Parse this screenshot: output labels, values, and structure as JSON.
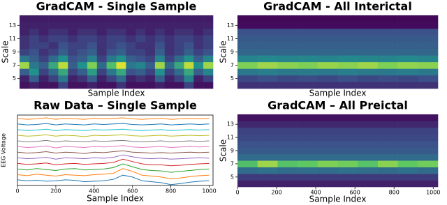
{
  "chart_data": [
    {
      "type": "heatmap",
      "title": "GradCAM - Single Sample",
      "xlabel": "Sample Index",
      "ylabel": "Scale",
      "colormap": "viridis",
      "ylim": [
        3.5,
        14.5
      ],
      "yticks": [
        5,
        7,
        9,
        11,
        13
      ],
      "y": [
        4,
        5,
        6,
        7,
        8,
        9,
        10,
        11,
        12,
        13,
        14
      ],
      "z": [
        [
          0.05,
          0.1,
          0.05,
          0.05,
          0.2,
          0.05,
          0.05,
          0.1,
          0.05,
          0.05,
          0.15,
          0.05,
          0.05,
          0.05,
          0.1,
          0.05,
          0.05,
          0.2,
          0.05,
          0.05
        ],
        [
          0.1,
          0.3,
          0.1,
          0.2,
          0.4,
          0.1,
          0.15,
          0.3,
          0.1,
          0.2,
          0.35,
          0.1,
          0.15,
          0.1,
          0.3,
          0.1,
          0.2,
          0.45,
          0.1,
          0.2
        ],
        [
          0.3,
          0.5,
          0.2,
          0.35,
          0.6,
          0.2,
          0.3,
          0.55,
          0.2,
          0.4,
          0.6,
          0.25,
          0.3,
          0.2,
          0.5,
          0.2,
          0.35,
          0.6,
          0.3,
          0.45
        ],
        [
          0.85,
          0.4,
          0.3,
          0.6,
          0.9,
          0.3,
          0.5,
          0.8,
          0.35,
          0.7,
          0.95,
          0.4,
          0.45,
          0.3,
          0.85,
          0.35,
          0.6,
          0.9,
          0.5,
          0.85
        ],
        [
          0.4,
          0.3,
          0.2,
          0.35,
          0.5,
          0.25,
          0.3,
          0.45,
          0.2,
          0.4,
          0.5,
          0.3,
          0.25,
          0.2,
          0.45,
          0.2,
          0.35,
          0.5,
          0.3,
          0.45
        ],
        [
          0.2,
          0.25,
          0.15,
          0.2,
          0.3,
          0.2,
          0.25,
          0.3,
          0.15,
          0.25,
          0.3,
          0.2,
          0.2,
          0.15,
          0.3,
          0.15,
          0.2,
          0.3,
          0.2,
          0.25
        ],
        [
          0.15,
          0.2,
          0.2,
          0.15,
          0.25,
          0.2,
          0.2,
          0.25,
          0.15,
          0.2,
          0.25,
          0.2,
          0.15,
          0.15,
          0.25,
          0.15,
          0.2,
          0.25,
          0.15,
          0.2
        ],
        [
          0.15,
          0.2,
          0.15,
          0.2,
          0.2,
          0.15,
          0.2,
          0.2,
          0.15,
          0.2,
          0.2,
          0.15,
          0.2,
          0.15,
          0.2,
          0.15,
          0.2,
          0.2,
          0.15,
          0.2
        ],
        [
          0.1,
          0.15,
          0.1,
          0.15,
          0.15,
          0.1,
          0.15,
          0.15,
          0.1,
          0.15,
          0.15,
          0.1,
          0.15,
          0.1,
          0.15,
          0.1,
          0.15,
          0.15,
          0.1,
          0.15
        ],
        [
          0.1,
          0.1,
          0.1,
          0.1,
          0.1,
          0.1,
          0.1,
          0.1,
          0.1,
          0.1,
          0.1,
          0.1,
          0.1,
          0.1,
          0.1,
          0.1,
          0.1,
          0.1,
          0.1,
          0.1
        ],
        [
          0.08,
          0.08,
          0.08,
          0.08,
          0.08,
          0.08,
          0.08,
          0.08,
          0.08,
          0.08,
          0.08,
          0.08,
          0.08,
          0.08,
          0.08,
          0.08,
          0.08,
          0.08,
          0.08,
          0.08
        ]
      ]
    },
    {
      "type": "heatmap",
      "title": "GradCAM - All Interictal",
      "xlabel": "Sample Index",
      "ylabel": "Scale",
      "colormap": "viridis",
      "ylim": [
        3.5,
        14.5
      ],
      "yticks": [
        5,
        7,
        9,
        11,
        13
      ],
      "y": [
        4,
        5,
        6,
        7,
        8,
        9,
        10,
        11,
        12,
        13,
        14
      ],
      "z": [
        [
          0.15,
          0.15,
          0.15,
          0.15,
          0.15,
          0.15,
          0.15,
          0.15,
          0.15,
          0.15
        ],
        [
          0.22,
          0.24,
          0.22,
          0.23,
          0.22,
          0.24,
          0.22,
          0.23,
          0.22,
          0.24
        ],
        [
          0.4,
          0.42,
          0.4,
          0.41,
          0.4,
          0.42,
          0.41,
          0.4,
          0.42,
          0.4
        ],
        [
          0.8,
          0.85,
          0.82,
          0.8,
          0.84,
          0.82,
          0.85,
          0.8,
          0.83,
          0.82
        ],
        [
          0.45,
          0.47,
          0.45,
          0.46,
          0.45,
          0.47,
          0.46,
          0.45,
          0.47,
          0.45
        ],
        [
          0.33,
          0.33,
          0.33,
          0.33,
          0.33,
          0.33,
          0.33,
          0.33,
          0.33,
          0.33
        ],
        [
          0.3,
          0.3,
          0.3,
          0.3,
          0.3,
          0.3,
          0.3,
          0.3,
          0.3,
          0.3
        ],
        [
          0.28,
          0.28,
          0.28,
          0.28,
          0.28,
          0.28,
          0.28,
          0.28,
          0.28,
          0.28
        ],
        [
          0.25,
          0.25,
          0.25,
          0.25,
          0.25,
          0.25,
          0.25,
          0.25,
          0.25,
          0.25
        ],
        [
          0.03,
          0.03,
          0.03,
          0.03,
          0.03,
          0.03,
          0.03,
          0.03,
          0.03,
          0.03
        ],
        [
          0.02,
          0.02,
          0.02,
          0.02,
          0.02,
          0.02,
          0.02,
          0.02,
          0.02,
          0.02
        ]
      ]
    },
    {
      "type": "line",
      "title": "Raw Data – Single Sample",
      "xlabel": "Sample Index",
      "ylabel": "EEG Voltage",
      "x": [
        0,
        50,
        100,
        150,
        200,
        250,
        300,
        350,
        400,
        450,
        500,
        550,
        600,
        650,
        700,
        750,
        800,
        850,
        900,
        950,
        1000
      ],
      "xlim": [
        0,
        1020
      ],
      "xticks": [
        0,
        200,
        400,
        600,
        800,
        1000
      ],
      "ylim": [
        0,
        15
      ],
      "series": [
        {
          "color": "#1f77b4",
          "values": [
            1.2,
            1.0,
            1.1,
            0.9,
            1.0,
            1.2,
            1.1,
            0.8,
            0.9,
            1.0,
            1.3,
            2.2,
            1.8,
            1.0,
            0.8,
            0.6,
            0.2,
            0.4,
            0.7,
            0.9,
            1.0
          ]
        },
        {
          "color": "#ff7f0e",
          "values": [
            2.3,
            2.1,
            2.4,
            2.2,
            2.0,
            2.3,
            2.2,
            2.1,
            2.3,
            2.4,
            2.6,
            3.6,
            3.0,
            2.2,
            2.0,
            1.8,
            1.4,
            1.6,
            1.9,
            2.1,
            2.2
          ]
        },
        {
          "color": "#2ca02c",
          "values": [
            3.5,
            3.3,
            3.6,
            3.4,
            3.2,
            3.5,
            3.6,
            3.3,
            3.4,
            3.5,
            3.8,
            4.6,
            4.0,
            3.4,
            3.2,
            3.1,
            2.8,
            3.0,
            3.2,
            3.4,
            3.5
          ]
        },
        {
          "color": "#d62728",
          "values": [
            4.7,
            4.5,
            4.6,
            4.8,
            4.4,
            4.6,
            4.7,
            4.5,
            4.6,
            4.7,
            4.9,
            5.6,
            5.1,
            4.6,
            4.4,
            4.4,
            4.2,
            4.3,
            4.5,
            4.6,
            4.7
          ]
        },
        {
          "color": "#9467bd",
          "values": [
            5.9,
            5.7,
            5.8,
            6.0,
            5.6,
            5.9,
            5.8,
            5.7,
            5.9,
            5.8,
            6.0,
            6.5,
            6.1,
            5.8,
            5.7,
            5.8,
            5.6,
            5.7,
            5.8,
            5.9,
            5.8
          ]
        },
        {
          "color": "#8c564b",
          "values": [
            7.1,
            6.9,
            7.0,
            7.2,
            6.9,
            7.1,
            7.0,
            6.8,
            7.1,
            7.0,
            7.2,
            7.4,
            7.1,
            7.0,
            6.9,
            7.0,
            6.9,
            7.0,
            7.1,
            7.0,
            7.1
          ]
        },
        {
          "color": "#e377c2",
          "values": [
            8.3,
            8.1,
            8.2,
            8.4,
            8.0,
            8.3,
            8.2,
            8.1,
            8.3,
            8.2,
            8.3,
            8.5,
            8.2,
            8.1,
            8.2,
            8.3,
            8.1,
            8.2,
            8.3,
            8.2,
            8.3
          ]
        },
        {
          "color": "#7f7f7f",
          "values": [
            9.5,
            9.3,
            9.4,
            9.6,
            9.3,
            9.5,
            9.4,
            9.3,
            9.5,
            9.4,
            9.5,
            9.6,
            9.4,
            9.3,
            9.4,
            9.5,
            9.3,
            9.4,
            9.5,
            9.4,
            9.5
          ]
        },
        {
          "color": "#bcbd22",
          "values": [
            10.7,
            10.5,
            10.6,
            10.8,
            10.5,
            10.7,
            10.6,
            10.4,
            10.7,
            10.6,
            10.7,
            10.8,
            10.6,
            10.5,
            10.6,
            10.7,
            10.5,
            10.6,
            10.7,
            10.6,
            10.7
          ]
        },
        {
          "color": "#17becf",
          "values": [
            11.9,
            11.7,
            11.8,
            12.0,
            11.7,
            11.9,
            11.8,
            11.7,
            11.9,
            11.8,
            11.9,
            12.0,
            11.8,
            11.7,
            11.8,
            11.9,
            11.7,
            11.8,
            11.9,
            11.8,
            11.9
          ]
        },
        {
          "color": "#1f77b4",
          "values": [
            13.1,
            12.9,
            13.0,
            13.2,
            12.9,
            13.1,
            13.0,
            12.9,
            13.1,
            13.0,
            13.1,
            13.2,
            13.0,
            12.9,
            13.0,
            13.1,
            12.9,
            13.0,
            13.1,
            13.0,
            13.1
          ]
        },
        {
          "color": "#ff7f0e",
          "values": [
            14.3,
            14.1,
            14.2,
            14.4,
            14.1,
            14.3,
            14.2,
            14.1,
            14.3,
            14.2,
            14.3,
            14.4,
            14.2,
            14.1,
            14.2,
            14.3,
            14.1,
            14.2,
            14.3,
            14.2,
            14.3
          ]
        }
      ]
    },
    {
      "type": "heatmap",
      "title": "GradCAM – All Preictal",
      "xlabel": "Sample Index",
      "ylabel": "Scale",
      "colormap": "viridis",
      "ylim": [
        3.5,
        14.5
      ],
      "yticks": [
        5,
        7,
        9,
        11,
        13
      ],
      "y": [
        4,
        5,
        6,
        7,
        8,
        9,
        10,
        11,
        12,
        13,
        14
      ],
      "xlim": [
        0,
        1024
      ],
      "xticks": [
        0,
        200,
        400,
        600,
        800,
        1000
      ],
      "z": [
        [
          0.1,
          0.1,
          0.1,
          0.1,
          0.1,
          0.1,
          0.1,
          0.1,
          0.1,
          0.1
        ],
        [
          0.18,
          0.18,
          0.18,
          0.18,
          0.18,
          0.18,
          0.18,
          0.18,
          0.18,
          0.18
        ],
        [
          0.35,
          0.37,
          0.35,
          0.36,
          0.35,
          0.37,
          0.36,
          0.35,
          0.37,
          0.35
        ],
        [
          0.7,
          0.85,
          0.72,
          0.75,
          0.8,
          0.78,
          0.72,
          0.82,
          0.75,
          0.78
        ],
        [
          0.35,
          0.35,
          0.35,
          0.35,
          0.35,
          0.35,
          0.35,
          0.35,
          0.35,
          0.35
        ],
        [
          0.28,
          0.28,
          0.28,
          0.28,
          0.28,
          0.28,
          0.28,
          0.28,
          0.28,
          0.28
        ],
        [
          0.25,
          0.25,
          0.25,
          0.25,
          0.25,
          0.25,
          0.25,
          0.25,
          0.25,
          0.25
        ],
        [
          0.22,
          0.22,
          0.22,
          0.22,
          0.22,
          0.22,
          0.22,
          0.22,
          0.22,
          0.22
        ],
        [
          0.2,
          0.2,
          0.2,
          0.2,
          0.2,
          0.2,
          0.2,
          0.2,
          0.2,
          0.2
        ],
        [
          0.12,
          0.12,
          0.12,
          0.12,
          0.12,
          0.12,
          0.12,
          0.12,
          0.12,
          0.12
        ],
        [
          0.05,
          0.05,
          0.05,
          0.05,
          0.05,
          0.05,
          0.05,
          0.05,
          0.05,
          0.05
        ]
      ]
    }
  ]
}
